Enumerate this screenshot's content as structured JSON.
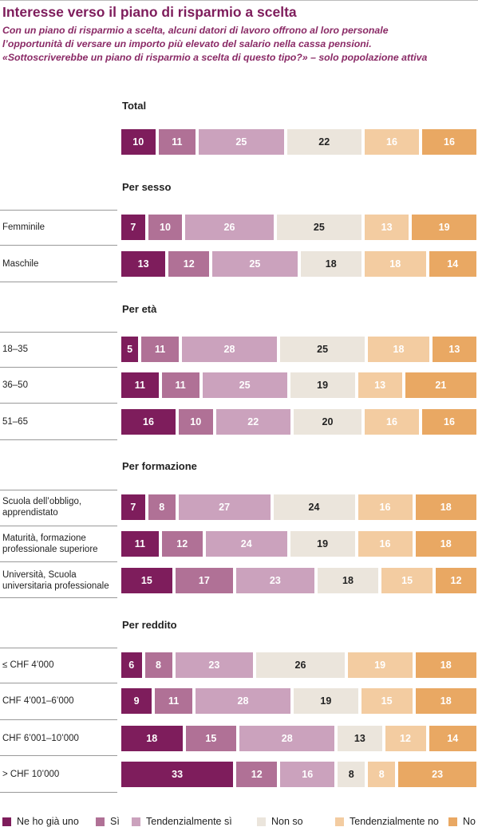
{
  "header": {
    "title": "Interesse verso il piano di risparmio a scelta",
    "subtitle_1": "Con un piano di risparmio a scelta, alcuni datori di lavoro offrono al loro personale",
    "subtitle_2": "l’opportunità di versare un importo più elevato del salario nella cassa pensioni.",
    "subtitle_3": "«Sottoscriverebbe un piano di risparmio a scelta di questo tipo?» – solo popolazione attiva"
  },
  "colors": {
    "Ne ho già uno": "#7e1d5c",
    "Sì": "#b07196",
    "Tendenzialmente sì": "#cba2bd",
    "Non so": "#ebe5dc",
    "Tendenzialmente no": "#f3cca1",
    "No": "#e9a863"
  },
  "label_colors": {
    "Ne ho già uno": "#ffffff",
    "Sì": "#ffffff",
    "Tendenzialmente sì": "#ffffff",
    "Non so": "#222222",
    "Tendenzialmente no": "#ffffff",
    "No": "#ffffff"
  },
  "chart_data": {
    "type": "bar",
    "orientation": "horizontal",
    "stacked": "100%",
    "legend_position": "bottom",
    "categories_order": [
      "Ne ho già uno",
      "Sì",
      "Tendenzialmente sì",
      "Non so",
      "Tendenzialmente no",
      "No"
    ],
    "groups": [
      {
        "title": "Total",
        "rows": [
          {
            "label": "",
            "values": [
              10,
              11,
              25,
              22,
              16,
              16
            ]
          }
        ]
      },
      {
        "title": "Per sesso",
        "rows": [
          {
            "label": "Femminile",
            "values": [
              7,
              10,
              26,
              25,
              13,
              19
            ]
          },
          {
            "label": "Maschile",
            "values": [
              13,
              12,
              25,
              18,
              18,
              14
            ]
          }
        ]
      },
      {
        "title": "Per età",
        "rows": [
          {
            "label": "18–35",
            "values": [
              5,
              11,
              28,
              25,
              18,
              13
            ]
          },
          {
            "label": "36–50",
            "values": [
              11,
              11,
              25,
              19,
              13,
              21
            ]
          },
          {
            "label": "51–65",
            "values": [
              16,
              10,
              22,
              20,
              16,
              16
            ]
          }
        ]
      },
      {
        "title": "Per formazione",
        "rows": [
          {
            "label": "Scuola dell’obbligo, apprendistato",
            "values": [
              7,
              8,
              27,
              24,
              16,
              18
            ]
          },
          {
            "label": "Maturità, formazione professionale superiore",
            "values": [
              11,
              12,
              24,
              19,
              16,
              18
            ]
          },
          {
            "label": "Università, Scuola universitaria professionale",
            "values": [
              15,
              17,
              23,
              18,
              15,
              12
            ]
          }
        ]
      },
      {
        "title": "Per reddito",
        "rows": [
          {
            "label": "≤ CHF 4’000",
            "values": [
              6,
              8,
              23,
              26,
              19,
              18
            ]
          },
          {
            "label": "CHF 4’001–6’000",
            "values": [
              9,
              11,
              28,
              19,
              15,
              18
            ]
          },
          {
            "label": "CHF 6’001–10’000",
            "values": [
              18,
              15,
              28,
              13,
              12,
              14
            ]
          },
          {
            "label": "> CHF 10’000",
            "values": [
              33,
              12,
              16,
              8,
              8,
              23
            ]
          }
        ]
      }
    ]
  }
}
